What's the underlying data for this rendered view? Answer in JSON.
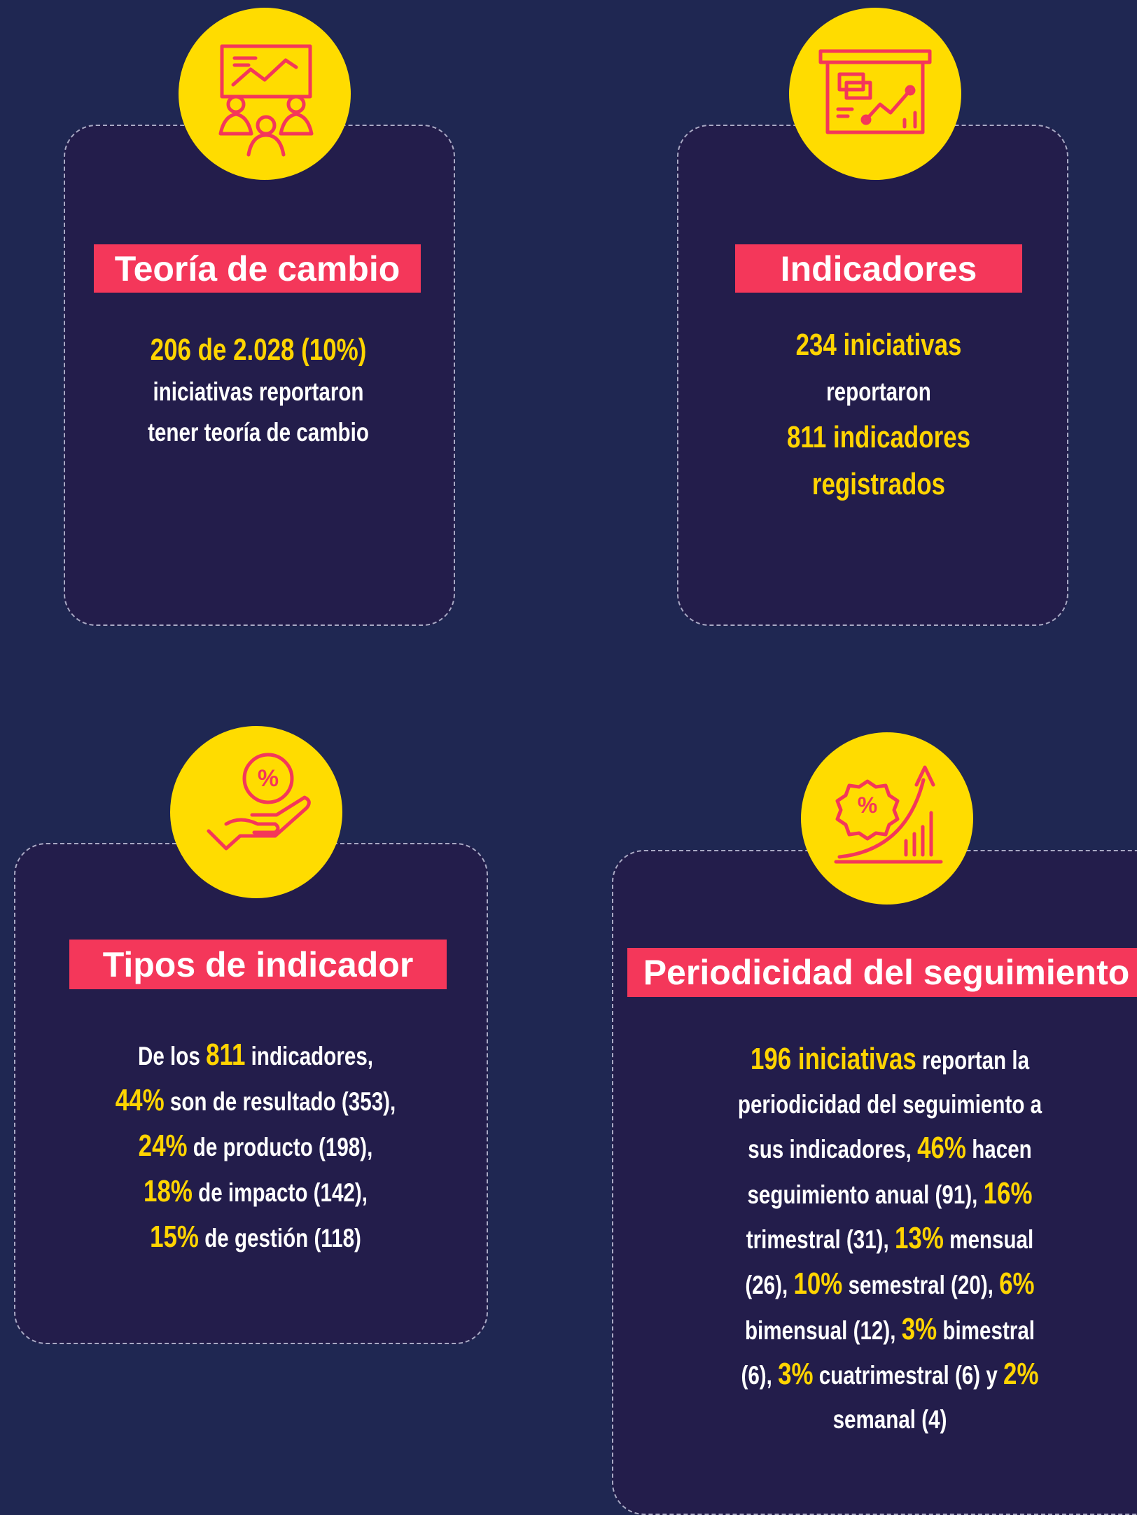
{
  "cards": [
    {
      "title": "Teoría de cambio",
      "lines": [
        [
          {
            "text": "206 de 2.028 (10%)",
            "highlight": true
          }
        ],
        [
          {
            "text": "iniciativas reportaron",
            "highlight": false
          }
        ],
        [
          {
            "text": "tener teoría de cambio",
            "highlight": false
          }
        ]
      ]
    },
    {
      "title": "Indicadores",
      "lines": [
        [
          {
            "text": "234 iniciativas",
            "highlight": true
          }
        ],
        [
          {
            "text": "reportaron",
            "highlight": false
          }
        ],
        [
          {
            "text": "811 indicadores",
            "highlight": true
          }
        ],
        [
          {
            "text": "registrados",
            "highlight": true
          }
        ]
      ]
    },
    {
      "title": "Tipos de indicador",
      "lines": [
        [
          {
            "text": "De los ",
            "highlight": false
          },
          {
            "text": "811",
            "highlight": true
          },
          {
            "text": " indicadores,",
            "highlight": false
          }
        ],
        [
          {
            "text": "44%",
            "highlight": true
          },
          {
            "text": " son de resultado (353),",
            "highlight": false
          }
        ],
        [
          {
            "text": "24%",
            "highlight": true
          },
          {
            "text": " de producto (198),",
            "highlight": false
          }
        ],
        [
          {
            "text": "18%",
            "highlight": true
          },
          {
            "text": " de impacto (142),",
            "highlight": false
          }
        ],
        [
          {
            "text": "15%",
            "highlight": true
          },
          {
            "text": " de gestión (118)",
            "highlight": false
          }
        ]
      ]
    },
    {
      "title": "Periodicidad del seguimiento",
      "lines": [
        [
          {
            "text": "196 iniciativas",
            "highlight": true
          },
          {
            "text": " reportan la",
            "highlight": false
          }
        ],
        [
          {
            "text": "periodicidad del seguimiento a",
            "highlight": false
          }
        ],
        [
          {
            "text": "sus indicadores, ",
            "highlight": false
          },
          {
            "text": "46%",
            "highlight": true
          },
          {
            "text": " hacen",
            "highlight": false
          }
        ],
        [
          {
            "text": "seguimiento anual (91), ",
            "highlight": false
          },
          {
            "text": "16%",
            "highlight": true
          }
        ],
        [
          {
            "text": "trimestral (31), ",
            "highlight": false
          },
          {
            "text": "13%",
            "highlight": true
          },
          {
            "text": " mensual",
            "highlight": false
          }
        ],
        [
          {
            "text": "(26), ",
            "highlight": false
          },
          {
            "text": "10%",
            "highlight": true
          },
          {
            "text": " semestral (20), ",
            "highlight": false
          },
          {
            "text": "6%",
            "highlight": true
          }
        ],
        [
          {
            "text": "bimensual (12), ",
            "highlight": false
          },
          {
            "text": "3%",
            "highlight": true
          },
          {
            "text": " bimestral",
            "highlight": false
          }
        ],
        [
          {
            "text": "(6), ",
            "highlight": false
          },
          {
            "text": "3%",
            "highlight": true
          },
          {
            "text": " cuatrimestral (6) y ",
            "highlight": false
          },
          {
            "text": "2%",
            "highlight": true
          }
        ],
        [
          {
            "text": "semanal (4)",
            "highlight": false
          }
        ]
      ]
    }
  ]
}
